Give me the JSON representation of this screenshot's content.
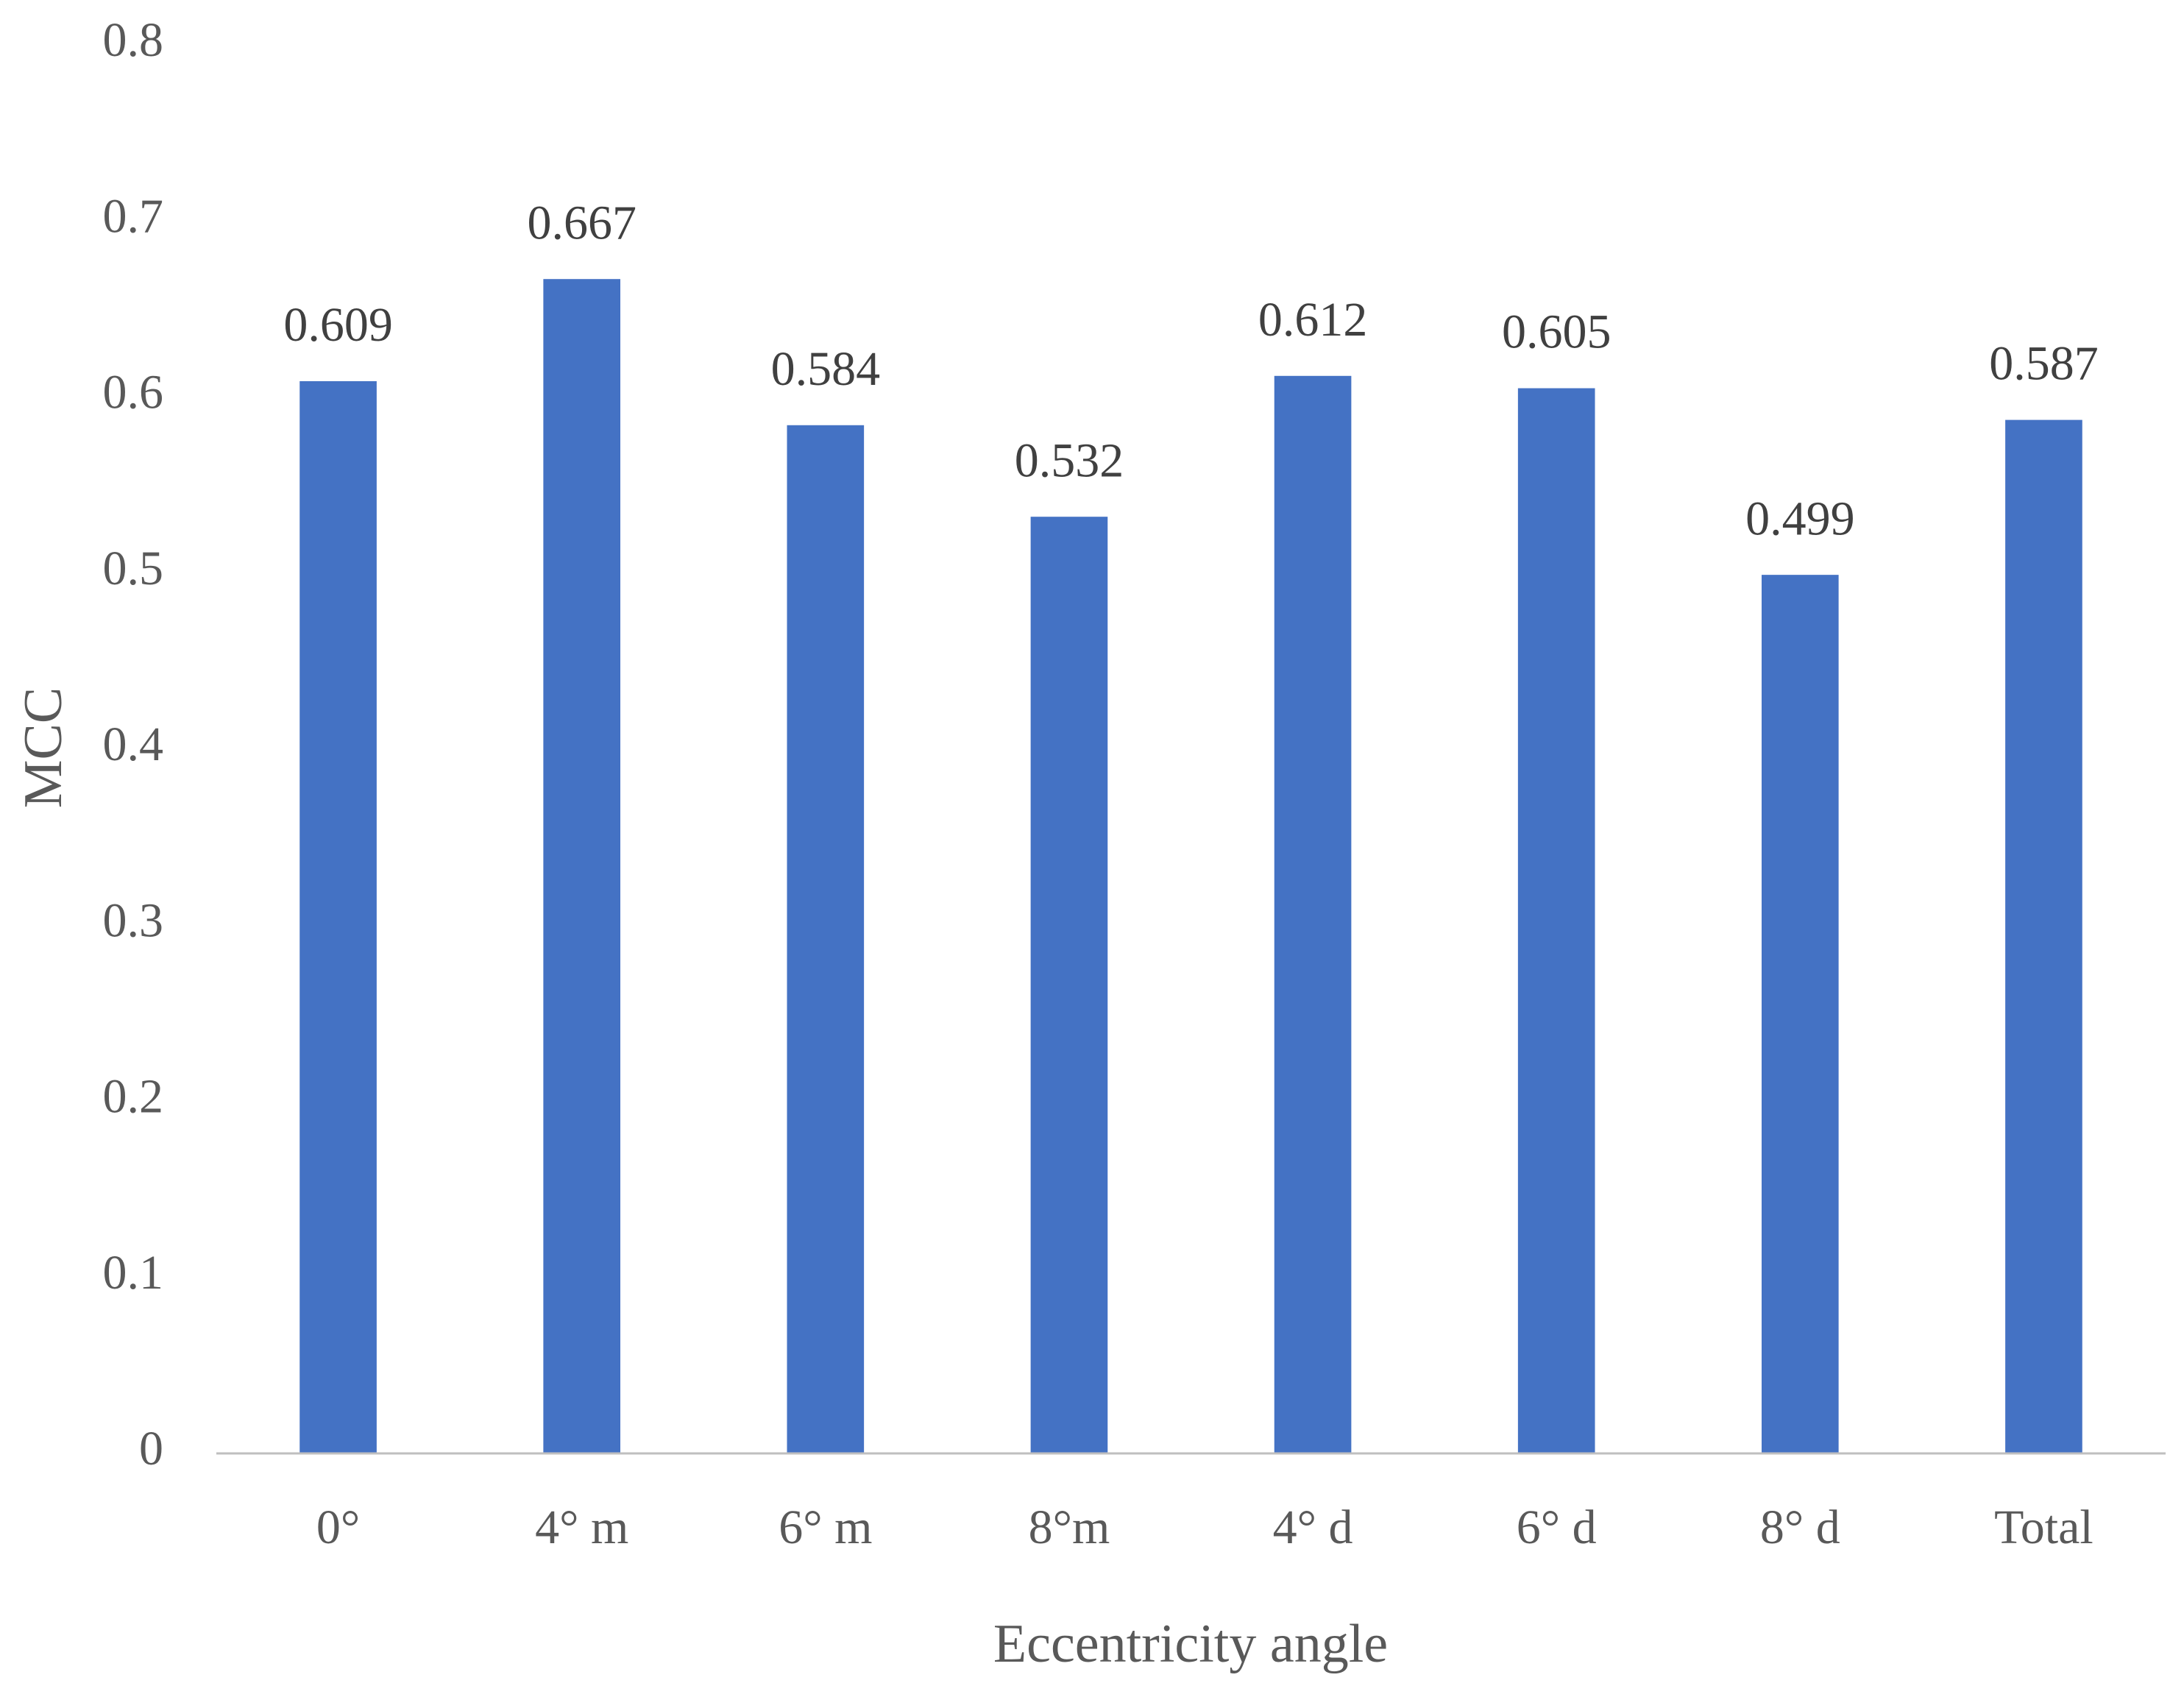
{
  "chart_data": {
    "type": "bar",
    "x_label": "Eccentricity angle",
    "y_label": "MCC",
    "categories": [
      "0°",
      "4° m",
      "6° m",
      "8°m",
      "4° d",
      "6° d",
      "8° d",
      "Total"
    ],
    "values": [
      0.609,
      0.667,
      0.584,
      0.532,
      0.612,
      0.605,
      0.499,
      0.587
    ],
    "color": "#4472c4",
    "ylim": [
      0,
      0.8
    ],
    "yticks": [
      0,
      0.1,
      0.2,
      0.3,
      0.4,
      0.5,
      0.6,
      0.7,
      0.8
    ],
    "grid": false,
    "show_value_labels": true
  }
}
